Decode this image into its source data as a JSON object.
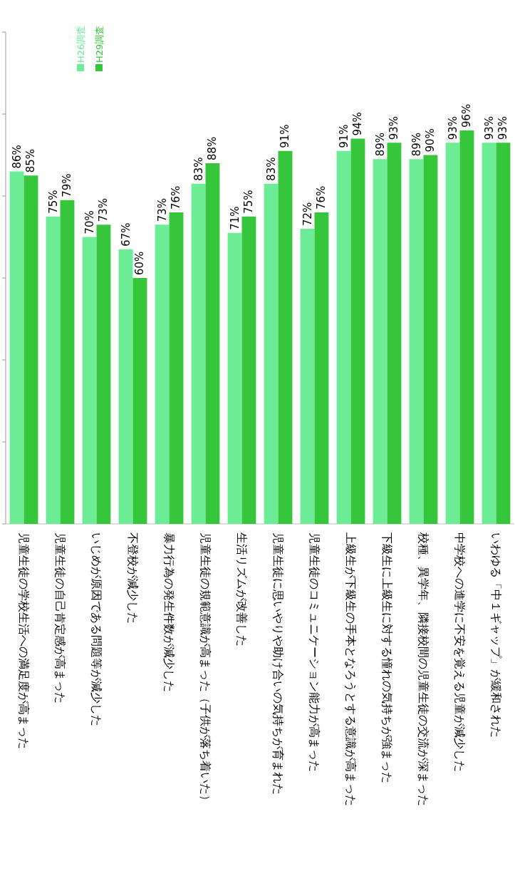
{
  "chart_data": {
    "type": "bar",
    "categories": [
      "児童生徒の学校生活への満足度が高まった",
      "児童生徒の自己肯定感が高まった",
      "いじめが原因である問題等が減少した",
      "不登校が減少した",
      "暴力行為の発生件数が減少した",
      "児童生徒の規範意識が高まった（子供が落ち着いた）",
      "生活リズムが改善した",
      "児童生徒に思いやりや助け合いの気持ちが育まれた",
      "児童生徒のコミュニケーション能力が高まった",
      "上級生が下級生の手本となろうとする意識が高まった",
      "下級生に上級生に対する憧れの気持ちが強まった",
      "校種、異学年、隣接校間の児童生徒の交流が深まった",
      "中学校への進学に不安を覚える児童が減少した",
      "いわゆる「中１ギャップ」が緩和された"
    ],
    "series": [
      {
        "name": "H26調査",
        "color": "#6bec95",
        "values": [
          86,
          75,
          70,
          67,
          73,
          83,
          71,
          83,
          72,
          91,
          89,
          89,
          93,
          93
        ],
        "value_labels": [
          "86%",
          "75%",
          "70%",
          "67%",
          "73%",
          "83%",
          "71%",
          "83%",
          "72%",
          "91%",
          "89%",
          "89%",
          "93%",
          "93%"
        ]
      },
      {
        "name": "H29調査",
        "color": "#36c63c",
        "values": [
          85,
          79,
          73,
          60,
          76,
          88,
          75,
          91,
          76,
          94,
          93,
          90,
          96,
          93
        ],
        "value_labels": [
          "85%",
          "79%",
          "73%",
          "60%",
          "76%",
          "88%",
          "75%",
          "91%",
          "76%",
          "94%",
          "93%",
          "90%",
          "96%",
          "93%"
        ]
      }
    ],
    "ylim": [
      0,
      120
    ],
    "yticks": [
      {
        "value": 0,
        "label": null
      },
      {
        "value": 20,
        "label": null
      },
      {
        "value": 40,
        "label": null
      },
      {
        "value": 60,
        "label": null
      },
      {
        "value": 80,
        "label": null
      },
      {
        "value": 100,
        "label": null
      },
      {
        "value": 120,
        "label": null
      }
    ],
    "legend": "top left"
  }
}
